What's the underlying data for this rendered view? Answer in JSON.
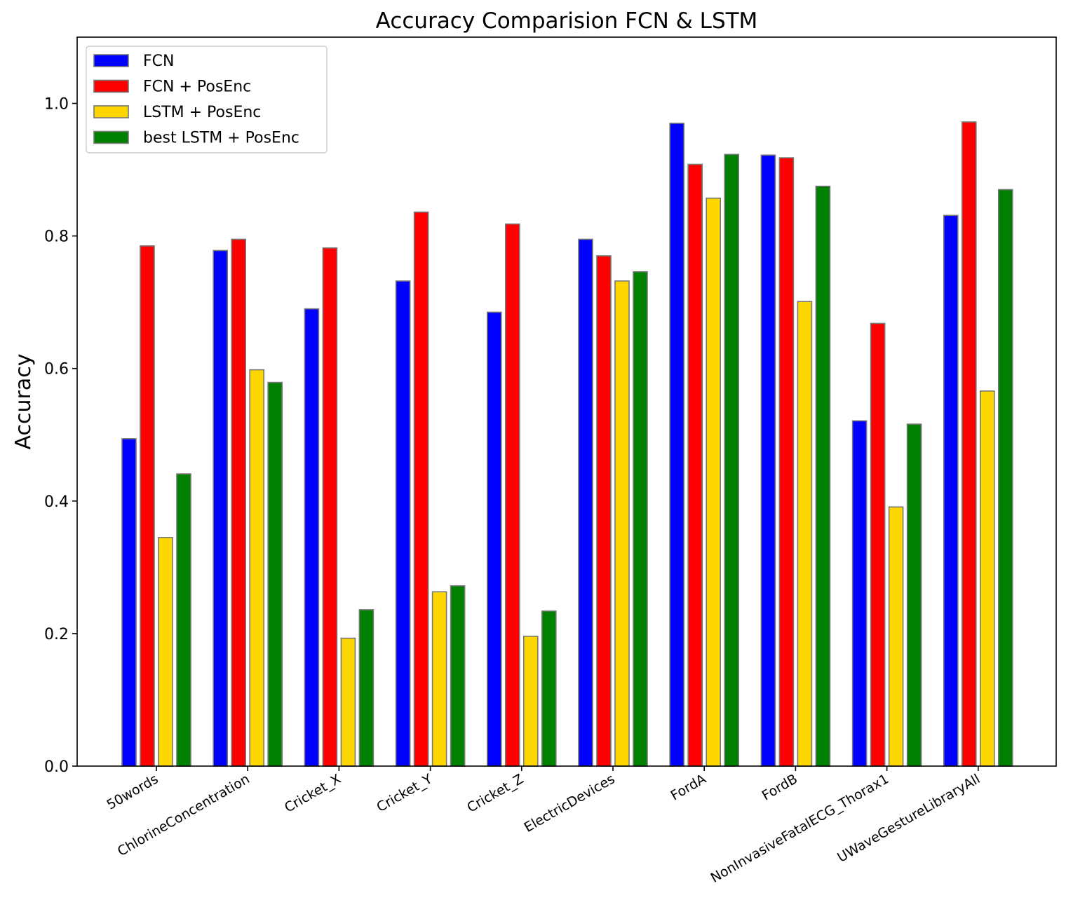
{
  "chart_data": {
    "type": "bar",
    "title": "Accuracy Comparision FCN & LSTM",
    "xlabel": "",
    "ylabel": "Accuracy",
    "ylim": [
      0,
      1.1
    ],
    "yticks": [
      "0.0",
      "0.2",
      "0.4",
      "0.6",
      "0.8",
      "1.0"
    ],
    "grid": false,
    "legend_position": "top-left",
    "categories": [
      "50words",
      "ChlorineConcentration",
      "Cricket_X",
      "Cricket_Y",
      "Cricket_Z",
      "ElectricDevices",
      "FordA",
      "FordB",
      "NonInvasiveFatalECG_Thorax1",
      "UWaveGestureLibraryAll"
    ],
    "series": [
      {
        "name": "FCN",
        "color": "#0000ff",
        "values": [
          0.494,
          0.778,
          0.69,
          0.732,
          0.685,
          0.795,
          0.97,
          0.922,
          0.521,
          0.831
        ]
      },
      {
        "name": "FCN + PosEnc",
        "color": "#ff0000",
        "values": [
          0.785,
          0.795,
          0.782,
          0.836,
          0.818,
          0.77,
          0.908,
          0.918,
          0.668,
          0.972
        ]
      },
      {
        "name": "LSTM + PosEnc",
        "color": "#ffd700",
        "values": [
          0.345,
          0.598,
          0.193,
          0.263,
          0.196,
          0.732,
          0.857,
          0.701,
          0.391,
          0.566
        ]
      },
      {
        "name": "best LSTM + PosEnc",
        "color": "#008000",
        "values": [
          0.441,
          0.579,
          0.236,
          0.272,
          0.234,
          0.746,
          0.923,
          0.875,
          0.516,
          0.87
        ]
      }
    ]
  }
}
